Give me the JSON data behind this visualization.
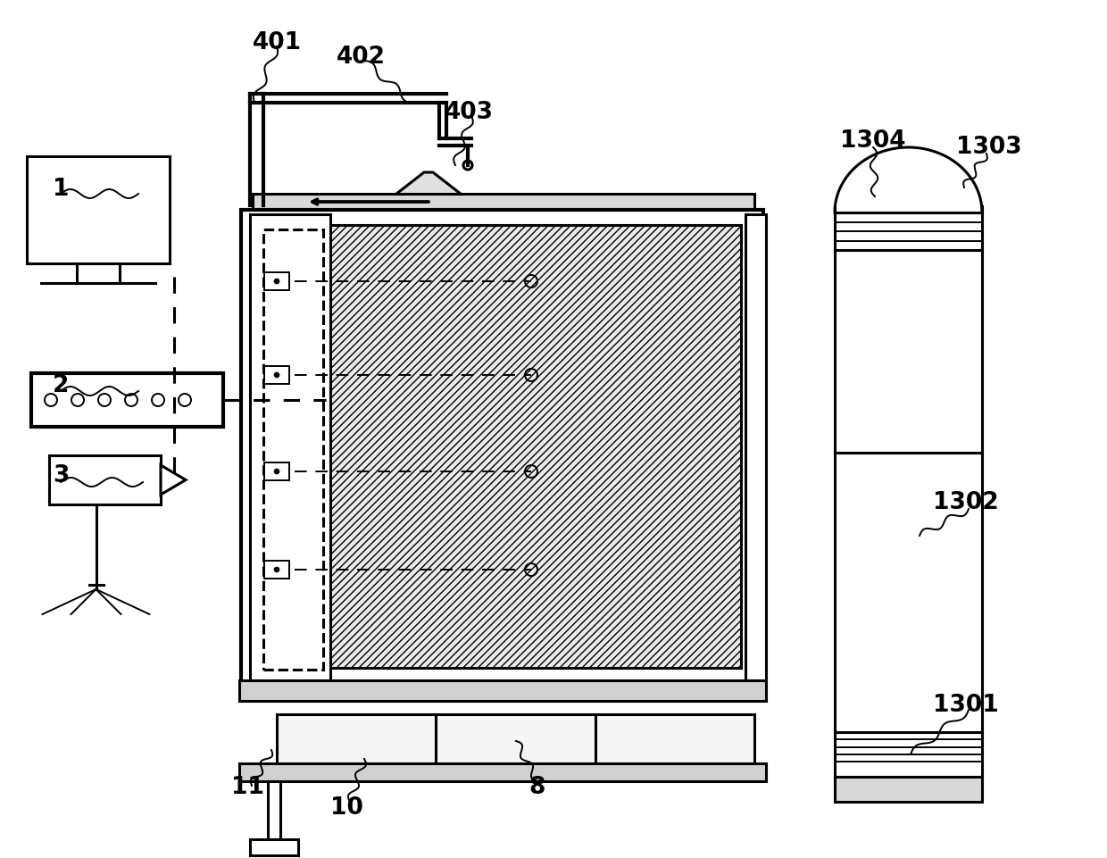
{
  "bg_color": "#ffffff",
  "line_color": "#000000",
  "label_color": "#000000",
  "font_size": 19,
  "lw": 2.2,
  "lw_thin": 1.4,
  "lw_thick": 3.0
}
